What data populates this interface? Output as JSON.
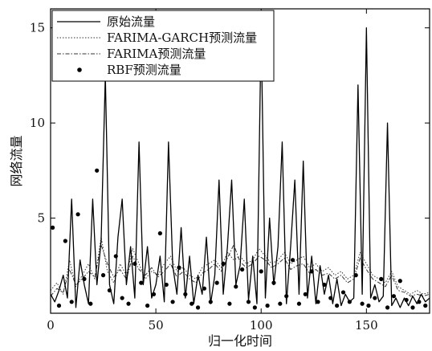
{
  "chart_data": {
    "type": "line",
    "title": "",
    "xlabel": "归一化时间",
    "ylabel": "网络流量",
    "xlim": [
      0,
      180
    ],
    "ylim": [
      0,
      16
    ],
    "xticks": [
      0,
      50,
      100,
      150
    ],
    "yticks": [
      5,
      10,
      15
    ],
    "legend_position": "top-left",
    "grid": false,
    "series": [
      {
        "name": "原始流量",
        "style": "solid",
        "x": [
          0,
          2,
          4,
          6,
          8,
          10,
          12,
          14,
          16,
          18,
          20,
          22,
          24,
          26,
          28,
          30,
          32,
          34,
          36,
          38,
          40,
          42,
          44,
          46,
          48,
          50,
          52,
          54,
          56,
          58,
          60,
          62,
          64,
          66,
          68,
          70,
          72,
          74,
          76,
          78,
          80,
          82,
          84,
          86,
          88,
          90,
          92,
          94,
          96,
          98,
          100,
          102,
          104,
          106,
          108,
          110,
          112,
          114,
          116,
          118,
          120,
          122,
          124,
          126,
          128,
          130,
          132,
          134,
          136,
          138,
          140,
          142,
          144,
          146,
          148,
          150,
          152,
          154,
          156,
          158,
          160,
          162,
          164,
          166,
          168,
          170,
          172,
          174,
          176,
          178,
          180
        ],
        "y": [
          1.0,
          0.6,
          1.2,
          2.0,
          0.8,
          6.0,
          0.3,
          2.8,
          1.5,
          0.5,
          6.0,
          1.5,
          3.8,
          12.5,
          1.5,
          0.5,
          4.0,
          6.0,
          1.5,
          3.5,
          0.8,
          9.0,
          1.5,
          3.5,
          0.8,
          1.5,
          3.0,
          0.6,
          9.0,
          2.5,
          1.0,
          4.5,
          0.8,
          3.0,
          0.5,
          2.0,
          1.0,
          4.0,
          0.5,
          2.0,
          7.0,
          1.0,
          3.5,
          7.0,
          1.5,
          2.5,
          6.0,
          0.7,
          3.0,
          0.5,
          15.0,
          0.8,
          5.0,
          1.5,
          3.5,
          9.0,
          0.5,
          3.5,
          7.0,
          1.0,
          8.0,
          0.8,
          3.0,
          0.5,
          2.5,
          1.0,
          2.0,
          0.5,
          1.8,
          0.4,
          1.0,
          0.6,
          0.8,
          12.0,
          1.0,
          15.0,
          0.8,
          1.5,
          0.6,
          0.9,
          10.0,
          0.4,
          0.8,
          0.3,
          0.8,
          0.4,
          0.9,
          0.5,
          1.0,
          0.6,
          0.8
        ]
      },
      {
        "name": "FARIMA-GARCH预测流量",
        "style": "dotted",
        "x": [
          0,
          3,
          6,
          9,
          12,
          15,
          18,
          21,
          24,
          27,
          30,
          33,
          36,
          39,
          42,
          45,
          48,
          51,
          54,
          57,
          60,
          63,
          66,
          69,
          72,
          75,
          78,
          81,
          84,
          87,
          90,
          93,
          96,
          99,
          102,
          105,
          108,
          111,
          114,
          117,
          120,
          123,
          126,
          129,
          132,
          135,
          138,
          141,
          144,
          147,
          150,
          153,
          156,
          159,
          162,
          165,
          168,
          171,
          174,
          177,
          180
        ],
        "y": [
          1.2,
          1.6,
          1.0,
          2.8,
          1.4,
          2.0,
          2.6,
          1.8,
          4.0,
          2.2,
          1.6,
          2.6,
          2.0,
          3.4,
          2.6,
          1.8,
          2.2,
          2.0,
          2.6,
          3.0,
          2.2,
          2.4,
          2.0,
          1.8,
          2.4,
          2.6,
          2.8,
          2.4,
          3.2,
          2.8,
          3.0,
          2.6,
          2.8,
          3.4,
          3.0,
          2.6,
          2.8,
          3.2,
          2.6,
          2.8,
          3.0,
          2.4,
          2.6,
          2.2,
          2.4,
          2.0,
          2.2,
          1.8,
          2.0,
          3.2,
          2.6,
          2.0,
          1.8,
          1.6,
          2.2,
          1.4,
          1.2,
          1.0,
          1.2,
          1.0,
          1.1
        ]
      },
      {
        "name": "FARIMA预测流量",
        "style": "dash-dot",
        "x": [
          0,
          3,
          6,
          9,
          12,
          15,
          18,
          21,
          24,
          27,
          30,
          33,
          36,
          39,
          42,
          45,
          48,
          51,
          54,
          57,
          60,
          63,
          66,
          69,
          72,
          75,
          78,
          81,
          84,
          87,
          90,
          93,
          96,
          99,
          102,
          105,
          108,
          111,
          114,
          117,
          120,
          123,
          126,
          129,
          132,
          135,
          138,
          141,
          144,
          147,
          150,
          153,
          156,
          159,
          162,
          165,
          168,
          171,
          174,
          177,
          180
        ],
        "y": [
          0.9,
          1.3,
          1.1,
          2.3,
          1.5,
          1.8,
          2.2,
          1.9,
          3.6,
          2.6,
          1.9,
          2.3,
          1.8,
          3.0,
          2.3,
          2.0,
          2.4,
          1.9,
          2.2,
          2.6,
          1.9,
          2.2,
          1.8,
          1.6,
          2.1,
          2.3,
          2.6,
          2.2,
          2.9,
          3.6,
          2.7,
          2.4,
          2.6,
          3.0,
          2.8,
          2.4,
          2.6,
          2.9,
          2.3,
          2.5,
          2.6,
          2.1,
          2.3,
          2.0,
          2.1,
          1.8,
          2.0,
          1.6,
          1.8,
          2.9,
          2.3,
          1.8,
          1.6,
          1.4,
          2.0,
          1.2,
          1.1,
          0.9,
          1.0,
          0.9,
          1.0
        ]
      },
      {
        "name": "RBF预测流量",
        "style": "dots",
        "x": [
          1,
          4,
          7,
          10,
          13,
          16,
          19,
          22,
          25,
          28,
          31,
          34,
          37,
          40,
          43,
          46,
          49,
          52,
          55,
          58,
          61,
          64,
          67,
          70,
          73,
          76,
          79,
          82,
          85,
          88,
          91,
          94,
          97,
          100,
          103,
          106,
          109,
          112,
          115,
          118,
          121,
          124,
          127,
          130,
          133,
          136,
          139,
          142,
          145,
          148,
          151,
          154,
          157,
          160,
          163,
          166,
          169,
          172,
          175,
          178
        ],
        "y": [
          4.5,
          0.4,
          3.8,
          0.6,
          5.2,
          1.8,
          0.5,
          7.5,
          2.0,
          1.2,
          3.0,
          0.8,
          0.5,
          2.6,
          1.6,
          0.4,
          1.0,
          4.2,
          1.5,
          0.6,
          2.4,
          1.0,
          0.5,
          0.3,
          1.3,
          0.6,
          1.6,
          2.6,
          0.5,
          1.4,
          2.3,
          0.6,
          0.3,
          2.2,
          0.4,
          1.6,
          0.5,
          0.9,
          2.8,
          0.5,
          1.0,
          2.2,
          0.6,
          1.5,
          0.8,
          0.4,
          1.1,
          0.6,
          2.0,
          0.5,
          0.4,
          0.8,
          1.8,
          0.3,
          0.9,
          1.7,
          0.7,
          0.3,
          0.6,
          0.4
        ]
      }
    ]
  }
}
